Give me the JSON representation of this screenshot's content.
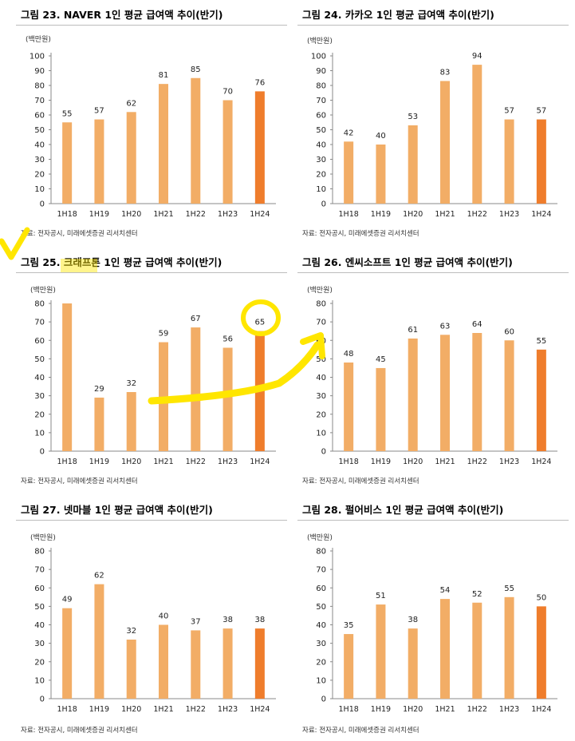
{
  "colors": {
    "bar": "#f2ad66",
    "bar_highlight": "#ef7d2c",
    "annotation": "#ffe600"
  },
  "chart_data": [
    {
      "type": "bar",
      "title": "그림 23. NAVER 1인 평균 급여액 추이(반기)",
      "unit": "(백만원)",
      "source": "자료: 전자공시, 미래에셋증권 리서치센터",
      "categories": [
        "1H18",
        "1H19",
        "1H20",
        "1H21",
        "1H22",
        "1H23",
        "1H24"
      ],
      "values": [
        55,
        57,
        62,
        81,
        85,
        70,
        76
      ],
      "value_labels": [
        "55",
        "57",
        "62",
        "81",
        "85",
        "70",
        "76"
      ],
      "ylim": [
        0,
        100
      ],
      "yticks": [
        0,
        10,
        20,
        30,
        40,
        50,
        60,
        70,
        80,
        90,
        100
      ],
      "highlight_last": true
    },
    {
      "type": "bar",
      "title": "그림 24. 카카오 1인 평균 급여액 추이(반기)",
      "unit": "(백만원)",
      "source": "자료: 전자공시, 미래에셋증권 리서치센터",
      "categories": [
        "1H18",
        "1H19",
        "1H20",
        "1H21",
        "1H22",
        "1H23",
        "1H24"
      ],
      "values": [
        42,
        40,
        53,
        83,
        94,
        57,
        57
      ],
      "value_labels": [
        "42",
        "40",
        "53",
        "83",
        "94",
        "57",
        "57"
      ],
      "ylim": [
        0,
        100
      ],
      "yticks": [
        0,
        10,
        20,
        30,
        40,
        50,
        60,
        70,
        80,
        90,
        100
      ],
      "highlight_last": true
    },
    {
      "type": "bar",
      "title": "그림 25. 크래프톤 1인 평균 급여액 추이(반기)",
      "unit": "(백만원)",
      "source": "자료: 전자공시, 미래에셋증권 리서치센터",
      "categories": [
        "1H18",
        "1H19",
        "1H20",
        "1H21",
        "1H22",
        "1H23",
        "1H24"
      ],
      "values": [
        80,
        29,
        32,
        59,
        67,
        56,
        65
      ],
      "value_labels": [
        "",
        "29",
        "32",
        "59",
        "67",
        "56",
        "65"
      ],
      "ylim": [
        0,
        80
      ],
      "yticks": [
        0,
        10,
        20,
        30,
        40,
        50,
        60,
        70,
        80
      ],
      "highlight_last": true
    },
    {
      "type": "bar",
      "title": "그림 26. 엔씨소프트 1인 평균 급여액 추이(반기)",
      "unit": "(백만원)",
      "source": "자료: 전자공시, 미래에셋증권 리서치센터",
      "categories": [
        "1H18",
        "1H19",
        "1H20",
        "1H21",
        "1H22",
        "1H23",
        "1H24"
      ],
      "values": [
        48,
        45,
        61,
        63,
        64,
        60,
        55
      ],
      "value_labels": [
        "48",
        "45",
        "61",
        "63",
        "64",
        "60",
        "55"
      ],
      "ylim": [
        0,
        80
      ],
      "yticks": [
        0,
        10,
        20,
        30,
        40,
        50,
        60,
        70,
        80
      ],
      "highlight_last": true
    },
    {
      "type": "bar",
      "title": "그림 27. 넷마블 1인 평균 급여액 추이(반기)",
      "unit": "(백만원)",
      "source": "자료: 전자공시, 미래에셋증권 리서치센터",
      "categories": [
        "1H18",
        "1H19",
        "1H20",
        "1H21",
        "1H22",
        "1H23",
        "1H24"
      ],
      "values": [
        49,
        62,
        32,
        40,
        37,
        38,
        38
      ],
      "value_labels": [
        "49",
        "62",
        "32",
        "40",
        "37",
        "38",
        "38"
      ],
      "ylim": [
        0,
        80
      ],
      "yticks": [
        0,
        10,
        20,
        30,
        40,
        50,
        60,
        70,
        80
      ],
      "highlight_last": true
    },
    {
      "type": "bar",
      "title": "그림 28. 펄어비스 1인 평균 급여액 추이(반기)",
      "unit": "(백만원)",
      "source": "자료: 전자공시, 미래에셋증권 리서치센터",
      "categories": [
        "1H18",
        "1H19",
        "1H20",
        "1H21",
        "1H22",
        "1H23",
        "1H24"
      ],
      "values": [
        35,
        51,
        38,
        54,
        52,
        55,
        50
      ],
      "value_labels": [
        "35",
        "51",
        "38",
        "54",
        "52",
        "55",
        "50"
      ],
      "ylim": [
        0,
        80
      ],
      "yticks": [
        0,
        10,
        20,
        30,
        40,
        50,
        60,
        70,
        80
      ],
      "highlight_last": true
    }
  ]
}
